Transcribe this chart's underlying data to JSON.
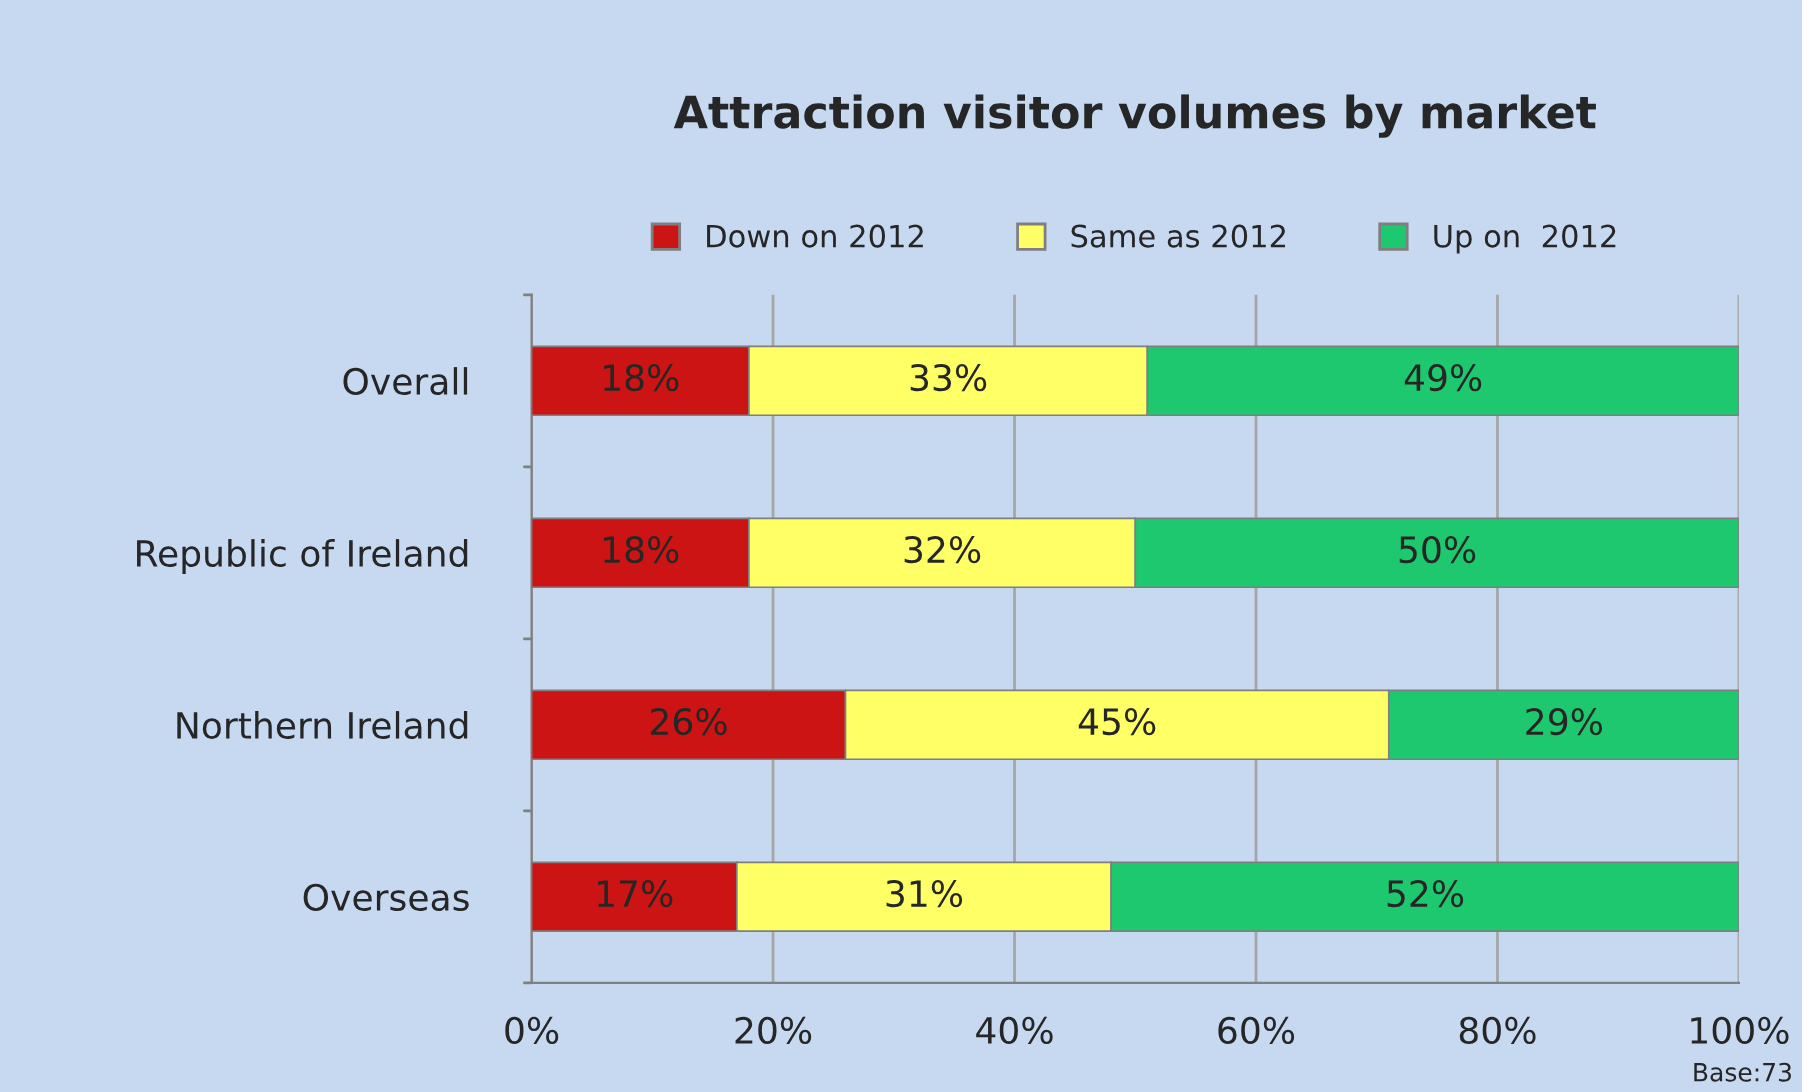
{
  "chart_data": {
    "type": "bar",
    "orientation": "horizontal",
    "stacked": true,
    "title": "Attraction visitor volumes by market",
    "categories": [
      "Overall",
      "Republic of Ireland",
      "Northern Ireland",
      "Overseas"
    ],
    "series": [
      {
        "name": "Down on 2012",
        "color": "#cc1414",
        "values": [
          18,
          18,
          26,
          17
        ],
        "value_labels": [
          "18%",
          "18%",
          "26%",
          "17%"
        ]
      },
      {
        "name": "Same as 2012",
        "color": "#ffff66",
        "values": [
          33,
          32,
          45,
          31
        ],
        "value_labels": [
          "33%",
          "32%",
          "45%",
          "31%"
        ]
      },
      {
        "name": "Up on  2012",
        "color": "#1ec86e",
        "values": [
          49,
          50,
          29,
          52
        ],
        "value_labels": [
          "49%",
          "50%",
          "29%",
          "52%"
        ]
      }
    ],
    "xlim": [
      0,
      100
    ],
    "xticks": [
      {
        "value": 0,
        "label": "0%"
      },
      {
        "value": 20,
        "label": "20%"
      },
      {
        "value": 40,
        "label": "40%"
      },
      {
        "value": 60,
        "label": "60%"
      },
      {
        "value": 80,
        "label": "80%"
      },
      {
        "value": 100,
        "label": "100%"
      }
    ],
    "grid": "x",
    "legend": "top",
    "annotations": [
      "Base:73"
    ]
  }
}
